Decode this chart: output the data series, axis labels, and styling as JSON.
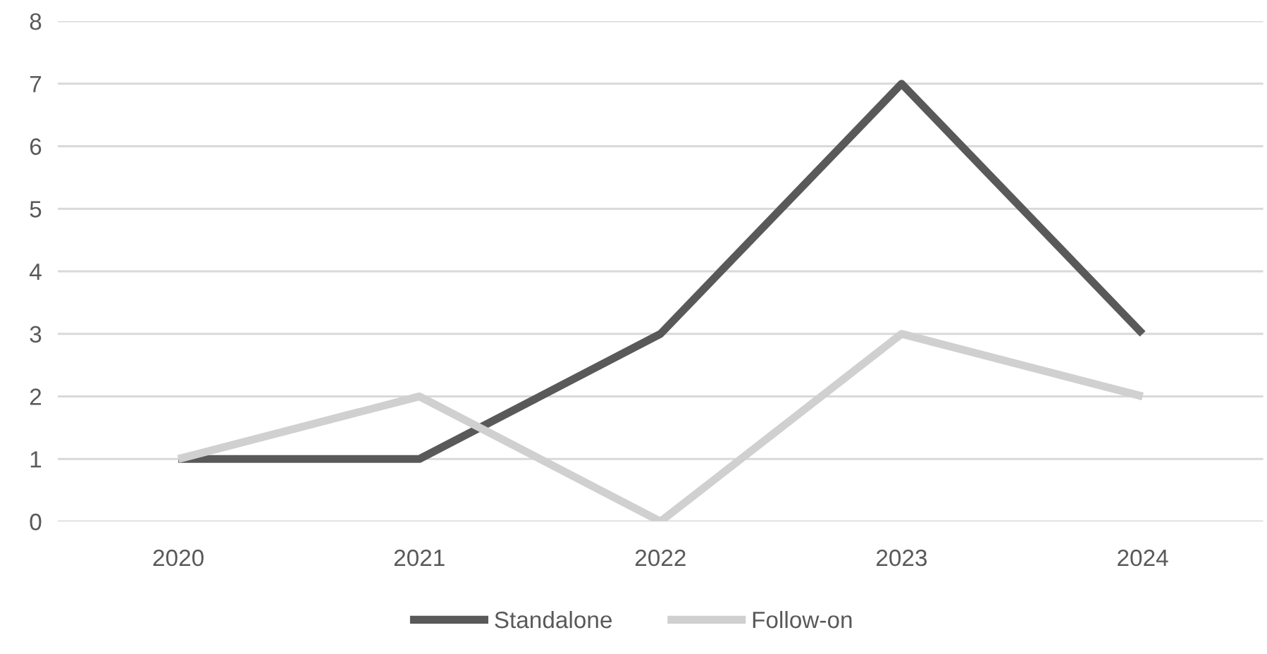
{
  "chart_data": {
    "type": "line",
    "categories": [
      "2020",
      "2021",
      "2022",
      "2023",
      "2024"
    ],
    "series": [
      {
        "name": "Standalone",
        "color": "#595959",
        "values": [
          1,
          1,
          3,
          7,
          3
        ]
      },
      {
        "name": "Follow-on",
        "color": "#d0d0d0",
        "values": [
          1,
          2,
          0,
          3,
          2
        ]
      }
    ],
    "ylim": [
      0,
      8
    ],
    "yticks": [
      0,
      1,
      2,
      3,
      4,
      5,
      6,
      7,
      8
    ],
    "grid": "y",
    "legend": "bottom",
    "marker": "none",
    "line_style": "solid"
  }
}
